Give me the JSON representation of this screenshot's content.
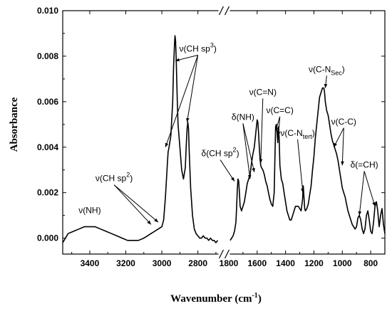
{
  "chart_data": {
    "type": "line",
    "xlabel": "Wavenumber (cm",
    "xlabel_sup": "-1",
    "xlabel_close": ")",
    "ylabel": "Absorbance",
    "x_reversed": true,
    "axis_break": "broken x-axis between 2800 and 1800 (drawn with //)",
    "xlim_left_segment": [
      3550,
      2680
    ],
    "xlim_right_segment": [
      1800,
      700
    ],
    "ylim": [
      -0.0007,
      0.01
    ],
    "yticks": [
      0.0,
      0.002,
      0.004,
      0.006,
      0.008,
      0.01
    ],
    "ytick_labels": [
      "0.000",
      "0.002",
      "0.004",
      "0.006",
      "0.008",
      "0.010"
    ],
    "xticks_left": [
      3400,
      3200,
      3000,
      2800
    ],
    "xtick_labels_left": [
      "3400",
      "3200",
      "3000",
      "2800"
    ],
    "xticks_right": [
      1800,
      1600,
      1400,
      1200,
      1000,
      800
    ],
    "xtick_labels_right": [
      "1800",
      "1600",
      "1400",
      "1200",
      "1000",
      "800"
    ],
    "grid": false,
    "series": [
      {
        "segment": "left",
        "x": [
          3550,
          3520,
          3490,
          3460,
          3430,
          3400,
          3370,
          3340,
          3310,
          3280,
          3250,
          3220,
          3190,
          3160,
          3130,
          3100,
          3080,
          3060,
          3040,
          3020,
          3000,
          2990,
          2980,
          2970,
          2965,
          2960,
          2950,
          2940,
          2935,
          2930,
          2927,
          2924,
          2920,
          2915,
          2910,
          2900,
          2890,
          2880,
          2870,
          2865,
          2860,
          2856,
          2852,
          2848,
          2840,
          2830,
          2820,
          2810,
          2800,
          2790,
          2780,
          2770,
          2760,
          2750,
          2740,
          2730,
          2720,
          2710,
          2700,
          2690
        ],
        "y": [
          -0.0002,
          0.0002,
          0.0003,
          0.0004,
          0.0005,
          0.0005,
          0.0005,
          0.0004,
          0.0003,
          0.0002,
          0.0001,
          0.0,
          -0.0001,
          -0.0001,
          -0.0001,
          0.0,
          0.0001,
          0.0002,
          0.0003,
          0.0004,
          0.0005,
          0.0008,
          0.0018,
          0.0032,
          0.0038,
          0.004,
          0.0045,
          0.006,
          0.0075,
          0.0085,
          0.0089,
          0.0087,
          0.0078,
          0.0062,
          0.005,
          0.004,
          0.003,
          0.0026,
          0.0031,
          0.004,
          0.0048,
          0.0051,
          0.0048,
          0.0038,
          0.0022,
          0.001,
          0.0004,
          0.0002,
          0.0001,
          0.0,
          0.0,
          0.0001,
          0.0,
          0.0,
          -0.0001,
          0.0,
          -0.0001,
          -0.0001,
          -0.0002,
          -0.0001
        ]
      },
      {
        "segment": "right",
        "x": [
          1790,
          1780,
          1770,
          1760,
          1750,
          1745,
          1740,
          1735,
          1730,
          1725,
          1720,
          1710,
          1700,
          1690,
          1680,
          1670,
          1660,
          1650,
          1640,
          1630,
          1620,
          1610,
          1600,
          1595,
          1590,
          1585,
          1580,
          1575,
          1570,
          1560,
          1550,
          1540,
          1530,
          1520,
          1510,
          1500,
          1490,
          1480,
          1475,
          1470,
          1465,
          1460,
          1455,
          1450,
          1445,
          1440,
          1430,
          1420,
          1410,
          1400,
          1390,
          1380,
          1370,
          1360,
          1350,
          1340,
          1330,
          1320,
          1310,
          1300,
          1290,
          1280,
          1275,
          1270,
          1265,
          1260,
          1250,
          1240,
          1230,
          1220,
          1210,
          1200,
          1190,
          1180,
          1170,
          1160,
          1150,
          1140,
          1130,
          1125,
          1120,
          1115,
          1110,
          1100,
          1090,
          1080,
          1070,
          1060,
          1050,
          1040,
          1030,
          1020,
          1010,
          1000,
          990,
          980,
          970,
          960,
          950,
          940,
          930,
          920,
          910,
          900,
          890,
          880,
          870,
          860,
          850,
          840,
          830,
          820,
          810,
          800,
          790,
          780,
          770,
          760,
          750,
          740,
          730,
          720,
          710,
          700
        ],
        "y": [
          -0.0001,
          0.0,
          0.0001,
          0.0003,
          0.0007,
          0.0013,
          0.0021,
          0.0026,
          0.0025,
          0.002,
          0.0014,
          0.0012,
          0.0014,
          0.0016,
          0.002,
          0.0024,
          0.0026,
          0.0028,
          0.0033,
          0.0037,
          0.004,
          0.0046,
          0.0052,
          0.0051,
          0.0046,
          0.004,
          0.0035,
          0.0032,
          0.0031,
          0.003,
          0.0028,
          0.0025,
          0.0023,
          0.002,
          0.0017,
          0.0015,
          0.0014,
          0.002,
          0.0035,
          0.0049,
          0.005,
          0.0047,
          0.0042,
          0.0049,
          0.0044,
          0.0032,
          0.0026,
          0.0024,
          0.002,
          0.0016,
          0.0012,
          0.001,
          0.0008,
          0.0008,
          0.001,
          0.0012,
          0.0014,
          0.0014,
          0.0014,
          0.0013,
          0.0012,
          0.0017,
          0.0023,
          0.0018,
          0.0013,
          0.0012,
          0.0013,
          0.0015,
          0.0019,
          0.0023,
          0.003,
          0.0036,
          0.0044,
          0.005,
          0.0056,
          0.0062,
          0.0064,
          0.0066,
          0.0066,
          0.0064,
          0.006,
          0.0058,
          0.0056,
          0.0054,
          0.005,
          0.0046,
          0.0043,
          0.0041,
          0.0039,
          0.0037,
          0.0034,
          0.003,
          0.0026,
          0.0022,
          0.002,
          0.0018,
          0.0015,
          0.0012,
          0.001,
          0.0008,
          0.0006,
          0.0005,
          0.0004,
          0.0005,
          0.0009,
          0.001,
          0.0008,
          0.0004,
          0.0002,
          0.0004,
          0.001,
          0.0012,
          0.0008,
          0.0003,
          0.0002,
          0.0007,
          0.0014,
          0.0016,
          0.0012,
          0.0005,
          0.001,
          0.0013,
          0.0006,
          0.0002
        ]
      }
    ],
    "annotations": [
      {
        "base": "ν(NH)",
        "sup": "",
        "sub": "",
        "tail": "",
        "ax": 3400,
        "ay": 0.0011,
        "arrows": []
      },
      {
        "base": "ν(CH sp",
        "sup": "2",
        "sub": "",
        "tail": ")",
        "ax": 3265,
        "ay": 0.0025,
        "arrows": [
          [
            3060,
            0.0006
          ],
          [
            3020,
            0.0007
          ]
        ]
      },
      {
        "base": "ν(CH sp",
        "sup": "3",
        "sub": "",
        "tail": ")",
        "ax": 2800,
        "ay": 0.0082,
        "arrows": [
          [
            2925,
            0.0078
          ],
          [
            2980,
            0.004
          ],
          [
            2860,
            0.0051
          ]
        ]
      },
      {
        "base": "δ(CH sp",
        "sup": "2",
        "sub": "",
        "tail": ")",
        "ax": 1860,
        "ay": 0.0036,
        "arrows": [
          [
            1760,
            0.0025
          ]
        ]
      },
      {
        "base": "δ(NH)",
        "sup": "",
        "sub": "",
        "tail": "",
        "ax": 1700,
        "ay": 0.0052,
        "arrows": [
          [
            1650,
            0.0026
          ],
          [
            1620,
            0.0029
          ]
        ]
      },
      {
        "base": "ν(C=N)",
        "sup": "",
        "sub": "",
        "tail": "",
        "ax": 1560,
        "ay": 0.0063,
        "arrows": [
          [
            1575,
            0.0033
          ]
        ]
      },
      {
        "base": "ν(C=C)",
        "sup": "",
        "sub": "",
        "tail": "",
        "ax": 1440,
        "ay": 0.0055,
        "arrows": [
          [
            1470,
            0.0047
          ],
          [
            1450,
            0.0045
          ]
        ]
      },
      {
        "base": "ν(C-N",
        "sup": "",
        "sub": "tert",
        "tail": ")",
        "ax": 1315,
        "ay": 0.0045,
        "arrows": [
          [
            1278,
            0.002
          ]
        ]
      },
      {
        "base": "ν(C-N",
        "sup": "",
        "sub": "Sec",
        "tail": ")",
        "ax": 1110,
        "ay": 0.0073,
        "arrows": [
          [
            1120,
            0.0066
          ]
        ]
      },
      {
        "base": "ν(C-C)",
        "sup": "",
        "sub": "",
        "tail": "",
        "ax": 990,
        "ay": 0.005,
        "arrows": [
          [
            1060,
            0.004
          ],
          [
            1000,
            0.0032
          ]
        ]
      },
      {
        "base": "δ(=CH)",
        "sup": "",
        "sub": "",
        "tail": "",
        "ax": 845,
        "ay": 0.0031,
        "arrows": [
          [
            880,
            0.001
          ],
          [
            770,
            0.0014
          ]
        ]
      }
    ]
  }
}
